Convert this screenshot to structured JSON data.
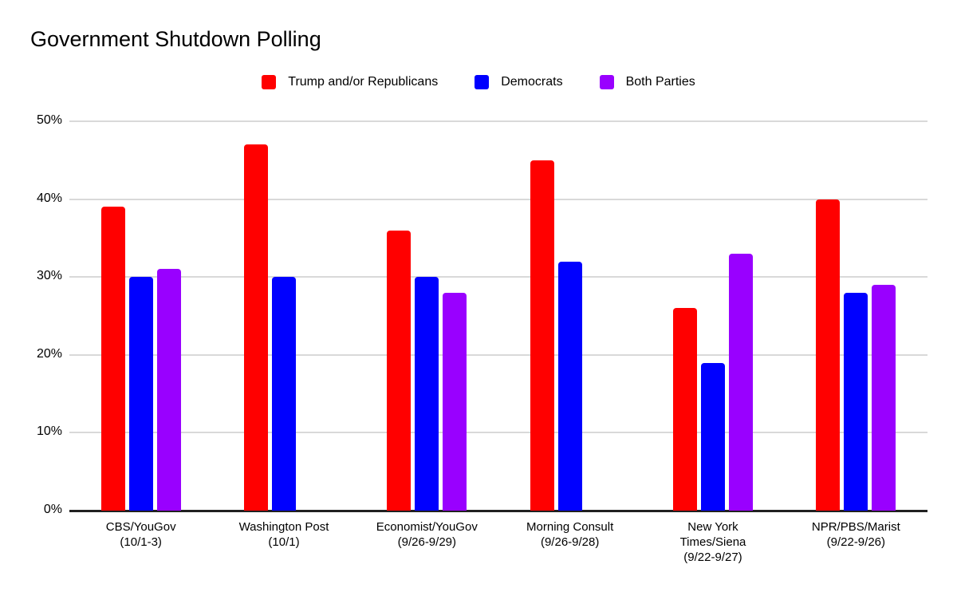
{
  "chart_data": {
    "type": "bar",
    "title": "Government Shutdown Polling",
    "categories": [
      "CBS/YouGov\n(10/1-3)",
      "Washington Post\n(10/1)",
      "Economist/YouGov\n(9/26-9/29)",
      "Morning Consult\n(9/26-9/28)",
      "New York\nTimes/Siena\n(9/22-9/27)",
      "NPR/PBS/Marist\n(9/22-9/26)"
    ],
    "series": [
      {
        "name": "Trump and/or Republicans",
        "color": "#ff0000",
        "values": [
          39,
          47,
          36,
          45,
          26,
          40
        ]
      },
      {
        "name": "Democrats",
        "color": "#0000ff",
        "values": [
          30,
          30,
          30,
          32,
          19,
          28
        ]
      },
      {
        "name": "Both Parties",
        "color": "#9900ff",
        "values": [
          31,
          null,
          28,
          null,
          33,
          29
        ]
      }
    ],
    "xlabel": "",
    "ylabel": "",
    "ylim": [
      0,
      50
    ],
    "yticks": [
      "0%",
      "10%",
      "20%",
      "30%",
      "40%",
      "50%"
    ],
    "grid": true,
    "legend_position": "top",
    "colors": {
      "gridline": "#d9d9d9",
      "axis": "#212121",
      "text": "#000000",
      "background": "#ffffff"
    }
  }
}
